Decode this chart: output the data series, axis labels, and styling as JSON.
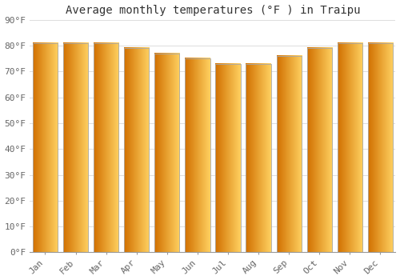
{
  "title": "Average monthly temperatures (°F ) in Traipu",
  "months": [
    "Jan",
    "Feb",
    "Mar",
    "Apr",
    "May",
    "Jun",
    "Jul",
    "Aug",
    "Sep",
    "Oct",
    "Nov",
    "Dec"
  ],
  "values": [
    81,
    81,
    81,
    79,
    77,
    75,
    73,
    73,
    76,
    79,
    81,
    81
  ],
  "ylim": [
    0,
    90
  ],
  "yticks": [
    0,
    10,
    20,
    30,
    40,
    50,
    60,
    70,
    80,
    90
  ],
  "ytick_labels": [
    "0°F",
    "10°F",
    "20°F",
    "30°F",
    "40°F",
    "50°F",
    "60°F",
    "70°F",
    "80°F",
    "90°F"
  ],
  "bar_color_left": "#E87000",
  "bar_color_mid": "#FFA500",
  "bar_color_right": "#FFD060",
  "bar_edge_color": "#AAAAAA",
  "background_color": "#FFFFFF",
  "grid_color": "#DDDDDD",
  "title_fontsize": 10,
  "tick_fontsize": 8,
  "font_family": "monospace",
  "tick_color": "#666666"
}
